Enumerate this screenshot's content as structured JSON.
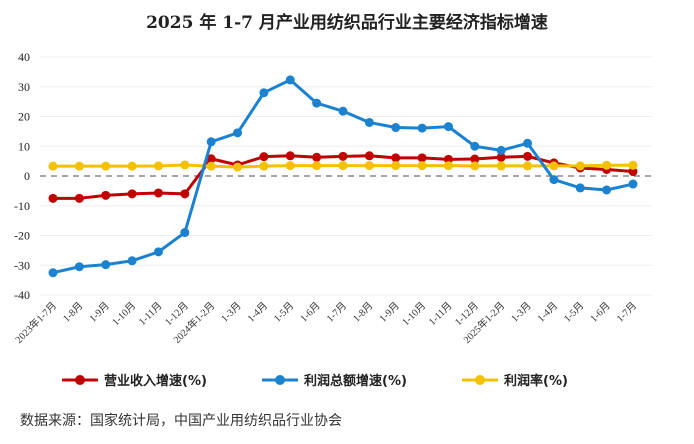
{
  "chart_data": {
    "type": "line",
    "title": "2025 年 1-7 月产业用纺织品行业主要经济指标增速",
    "categories": [
      "2023年1-7月",
      "1-8月",
      "1-9月",
      "1-10月",
      "1-11月",
      "1-12月",
      "2024年1-2月",
      "1-3月",
      "1-4月",
      "1-5月",
      "1-6月",
      "1-7月",
      "1-8月",
      "1-9月",
      "1-10月",
      "1-11月",
      "1-12月",
      "2025年1-2月",
      "1-3月",
      "1-4月",
      "1-5月",
      "1-6月",
      "1-7月"
    ],
    "ylim": [
      -40,
      40
    ],
    "yticks": [
      40,
      30,
      20,
      10,
      0,
      -10,
      -20,
      -30,
      -40
    ],
    "grid": true,
    "zero_line": "dashed",
    "legend_position": "bottom",
    "series": [
      {
        "name": "营业收入增速(%)",
        "color": "#c00000",
        "values": [
          -7.5,
          -7.5,
          -6.5,
          -6,
          -5.7,
          -6,
          5.8,
          3.7,
          6.5,
          6.8,
          6.3,
          6.6,
          6.8,
          6.1,
          6.1,
          5.6,
          5.7,
          6.3,
          6.6,
          4.4,
          2.7,
          2.2,
          1.5
        ]
      },
      {
        "name": "利润总额增速(%)",
        "color": "#1a82d0",
        "values": [
          -32.5,
          -30.5,
          -29.8,
          -28.5,
          -25.5,
          -19,
          11.5,
          14.5,
          28,
          32.3,
          24.5,
          21.8,
          18,
          16.3,
          16.1,
          16.6,
          10,
          8.6,
          11,
          -1.2,
          -4,
          -4.7,
          -2.7
        ]
      },
      {
        "name": "利润率(%)",
        "color": "#f5c000",
        "values": [
          3.3,
          3.3,
          3.3,
          3.3,
          3.4,
          3.7,
          3.3,
          3.0,
          3.3,
          3.5,
          3.5,
          3.5,
          3.5,
          3.5,
          3.5,
          3.5,
          3.4,
          3.4,
          3.4,
          3.4,
          3.4,
          3.6,
          3.6
        ]
      }
    ]
  },
  "source": "数据来源：国家统计局，中国产业用纺织品行业协会"
}
